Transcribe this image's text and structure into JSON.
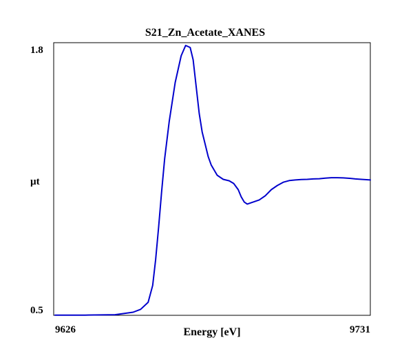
{
  "chart_data": {
    "type": "line",
    "title": "S21_Zn_Acetate_XANES",
    "xlabel": "Energy [eV]",
    "ylabel": "µt",
    "xlim": [
      9626,
      9731
    ],
    "ylim": [
      0.5,
      1.8
    ],
    "x_ticks": [
      "9626",
      "9731"
    ],
    "y_ticks": [
      "0.5",
      "1.8"
    ],
    "grid": false,
    "legend": "none",
    "line_color": "#0000cc",
    "series": [
      {
        "x": [
          9626,
          9636,
          9646,
          9652,
          9654.5,
          9657,
          9658.5,
          9659.5,
          9660.5,
          9661.5,
          9662.5,
          9664,
          9666,
          9668,
          9669.5,
          9671,
          9672,
          9673,
          9674,
          9675,
          9676,
          9677,
          9678,
          9680,
          9682,
          9684,
          9685.5,
          9687,
          9688,
          9689,
          9690,
          9691,
          9692,
          9693,
          9694,
          9696,
          9698,
          9700,
          9702,
          9704,
          9706,
          9708,
          9710,
          9712,
          9714,
          9716,
          9718,
          9720,
          9722,
          9724,
          9726,
          9728,
          9731
        ],
        "y": [
          0.491,
          0.491,
          0.493,
          0.505,
          0.519,
          0.553,
          0.635,
          0.76,
          0.92,
          1.09,
          1.25,
          1.43,
          1.62,
          1.75,
          1.8,
          1.79,
          1.73,
          1.6,
          1.47,
          1.38,
          1.32,
          1.26,
          1.22,
          1.17,
          1.15,
          1.143,
          1.13,
          1.1,
          1.065,
          1.04,
          1.03,
          1.035,
          1.04,
          1.045,
          1.05,
          1.07,
          1.1,
          1.12,
          1.136,
          1.144,
          1.147,
          1.149,
          1.15,
          1.152,
          1.153,
          1.156,
          1.158,
          1.158,
          1.157,
          1.155,
          1.152,
          1.15,
          1.147
        ]
      }
    ]
  }
}
